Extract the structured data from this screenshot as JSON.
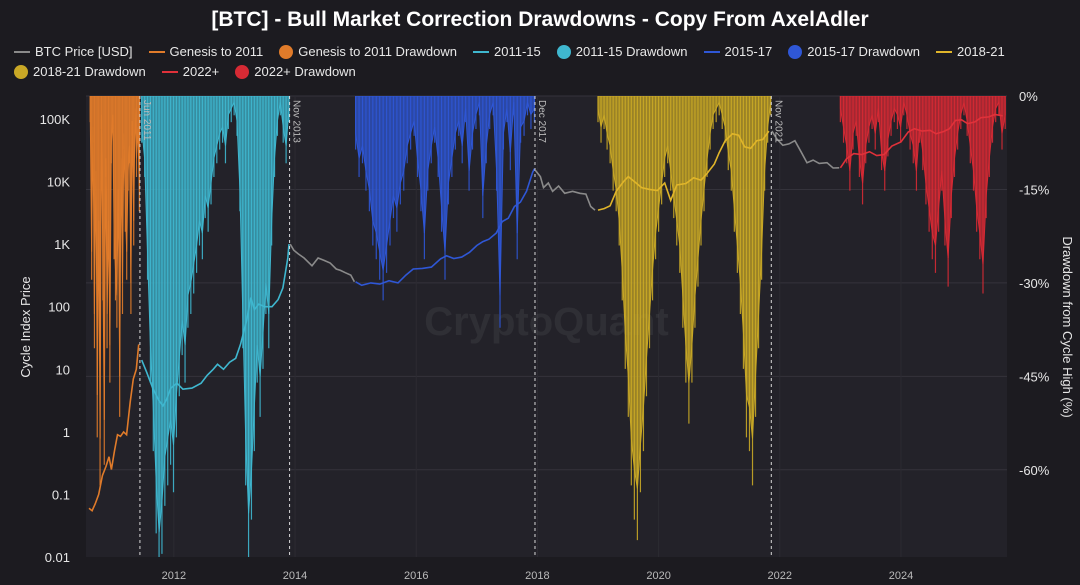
{
  "chart_data": {
    "type": "area",
    "title": "[BTC] - Bull Market Correction Drawdowns - Copy From AxelAdler",
    "ylabel_left": "Cycle Index Price",
    "ylabel_right": "Drawdown from Cycle High (%)",
    "y_left_scale": "log",
    "y_left_ticks": [
      "100K",
      "10K",
      "1K",
      "100",
      "10",
      "1",
      "0.1",
      "0.01"
    ],
    "y_left_tick_values": [
      100000,
      10000,
      1000,
      100,
      10,
      1,
      0.1,
      0.01
    ],
    "y_right_ticks": [
      "0%",
      "-15%",
      "-30%",
      "-45%",
      "-60%"
    ],
    "y_right_tick_values": [
      0,
      -15,
      -30,
      -45,
      -60
    ],
    "y_right_range": [
      -74,
      0
    ],
    "x_range": [
      2010.55,
      2025.75
    ],
    "x_ticks": [
      "2012",
      "2014",
      "2016",
      "2018",
      "2020",
      "2022",
      "2024"
    ],
    "x_tick_values": [
      2012,
      2014,
      2016,
      2018,
      2020,
      2022,
      2024
    ],
    "watermark": "CryptoQuant",
    "cycle_markers": [
      {
        "label": "Jun 2011",
        "x": 2011.44
      },
      {
        "label": "Nov 2013",
        "x": 2013.91
      },
      {
        "label": "Dec 2017",
        "x": 2017.96
      },
      {
        "label": "Nov 2021",
        "x": 2021.86
      }
    ],
    "legend": [
      {
        "label": "BTC Price [USD]",
        "kind": "line",
        "color": "#8a8a8a"
      },
      {
        "label": "Genesis to 2011",
        "kind": "line",
        "color": "#e07b2a"
      },
      {
        "label": "Genesis to 2011 Drawdown",
        "kind": "dot",
        "color": "#e07b2a"
      },
      {
        "label": "2011-15",
        "kind": "line",
        "color": "#3fb7cf"
      },
      {
        "label": "2011-15 Drawdown",
        "kind": "dot",
        "color": "#3fb7cf"
      },
      {
        "label": "2015-17",
        "kind": "line",
        "color": "#2f57d6"
      },
      {
        "label": "2015-17 Drawdown",
        "kind": "dot",
        "color": "#2f57d6"
      },
      {
        "label": "2018-21",
        "kind": "line",
        "color": "#e0b52a"
      },
      {
        "label": "2018-21 Drawdown",
        "kind": "dot",
        "color": "#c9a826"
      },
      {
        "label": "2022+",
        "kind": "line",
        "color": "#e0313a"
      },
      {
        "label": "2022+ Drawdown",
        "kind": "dot",
        "color": "#d62a34"
      }
    ],
    "series": [
      {
        "name": "Genesis to 2011",
        "color": "#e07b2a",
        "points": [
          [
            2010.6,
            0.06
          ],
          [
            2010.65,
            0.055
          ],
          [
            2010.7,
            0.07
          ],
          [
            2010.76,
            0.1
          ],
          [
            2010.82,
            0.2
          ],
          [
            2010.88,
            0.28
          ],
          [
            2010.93,
            0.4
          ],
          [
            2010.97,
            0.25
          ],
          [
            2011.02,
            0.5
          ],
          [
            2011.07,
            0.9
          ],
          [
            2011.12,
            0.85
          ],
          [
            2011.17,
            1.0
          ],
          [
            2011.22,
            0.9
          ],
          [
            2011.28,
            3
          ],
          [
            2011.33,
            7
          ],
          [
            2011.38,
            10
          ],
          [
            2011.42,
            25
          ]
        ]
      },
      {
        "name": "2011-15",
        "color": "#3fb7cf",
        "points": [
          [
            2011.47,
            14
          ],
          [
            2011.55,
            9
          ],
          [
            2011.65,
            5
          ],
          [
            2011.75,
            3.2
          ],
          [
            2011.82,
            2.6
          ],
          [
            2011.88,
            3.3
          ],
          [
            2011.95,
            5
          ],
          [
            2012.05,
            6
          ],
          [
            2012.15,
            4.8
          ],
          [
            2012.3,
            5
          ],
          [
            2012.45,
            6
          ],
          [
            2012.55,
            8
          ],
          [
            2012.65,
            10
          ],
          [
            2012.72,
            12
          ],
          [
            2012.82,
            10
          ],
          [
            2012.92,
            13
          ],
          [
            2013.02,
            15
          ],
          [
            2013.1,
            25
          ],
          [
            2013.2,
            60
          ],
          [
            2013.27,
            140
          ],
          [
            2013.33,
            90
          ],
          [
            2013.4,
            110
          ],
          [
            2013.5,
            100
          ],
          [
            2013.62,
            100
          ],
          [
            2013.72,
            130
          ],
          [
            2013.8,
            200
          ],
          [
            2013.88,
            600
          ],
          [
            2013.9,
            1000
          ]
        ]
      },
      {
        "name": "BTC Price [USD]",
        "color": "#8a8a8a",
        "points": [
          [
            2013.92,
            1000
          ],
          [
            2013.98,
            800
          ],
          [
            2014.05,
            700
          ],
          [
            2014.15,
            600
          ],
          [
            2014.28,
            450
          ],
          [
            2014.38,
            600
          ],
          [
            2014.48,
            550
          ],
          [
            2014.58,
            500
          ],
          [
            2014.68,
            400
          ],
          [
            2014.75,
            380
          ],
          [
            2014.83,
            350
          ],
          [
            2014.92,
            320
          ],
          [
            2014.98,
            250
          ]
        ]
      },
      {
        "name": "2015-17",
        "color": "#2f57d6",
        "points": [
          [
            2015.0,
            250
          ],
          [
            2015.1,
            220
          ],
          [
            2015.25,
            240
          ],
          [
            2015.4,
            230
          ],
          [
            2015.55,
            260
          ],
          [
            2015.7,
            240
          ],
          [
            2015.83,
            320
          ],
          [
            2015.95,
            400
          ],
          [
            2016.1,
            410
          ],
          [
            2016.25,
            430
          ],
          [
            2016.4,
            580
          ],
          [
            2016.5,
            650
          ],
          [
            2016.62,
            590
          ],
          [
            2016.75,
            620
          ],
          [
            2016.88,
            740
          ],
          [
            2017.0,
            950
          ],
          [
            2017.1,
            1100
          ],
          [
            2017.2,
            1200
          ],
          [
            2017.32,
            1500
          ],
          [
            2017.42,
            2300
          ],
          [
            2017.52,
            2600
          ],
          [
            2017.62,
            4000
          ],
          [
            2017.72,
            4700
          ],
          [
            2017.82,
            7000
          ],
          [
            2017.92,
            14000
          ],
          [
            2017.95,
            16000
          ]
        ]
      },
      {
        "name": "BTC Price [USD]",
        "color": "#8a8a8a",
        "points": [
          [
            2017.97,
            15000
          ],
          [
            2018.05,
            12000
          ],
          [
            2018.1,
            8000
          ],
          [
            2018.18,
            9500
          ],
          [
            2018.25,
            7000
          ],
          [
            2018.35,
            8500
          ],
          [
            2018.45,
            6500
          ],
          [
            2018.58,
            7000
          ],
          [
            2018.7,
            6500
          ],
          [
            2018.8,
            6300
          ],
          [
            2018.88,
            4000
          ],
          [
            2018.95,
            3500
          ]
        ]
      },
      {
        "name": "2018-21",
        "color": "#e0b52a",
        "points": [
          [
            2019.0,
            3500
          ],
          [
            2019.1,
            3700
          ],
          [
            2019.2,
            4100
          ],
          [
            2019.3,
            7000
          ],
          [
            2019.42,
            10000
          ],
          [
            2019.5,
            12000
          ],
          [
            2019.6,
            10000
          ],
          [
            2019.72,
            8000
          ],
          [
            2019.85,
            7500
          ],
          [
            2019.98,
            7200
          ],
          [
            2020.1,
            9500
          ],
          [
            2020.2,
            5000
          ],
          [
            2020.3,
            8800
          ],
          [
            2020.45,
            9300
          ],
          [
            2020.58,
            11500
          ],
          [
            2020.7,
            10500
          ],
          [
            2020.8,
            13500
          ],
          [
            2020.92,
            19000
          ],
          [
            2021.0,
            29000
          ],
          [
            2021.1,
            45000
          ],
          [
            2021.22,
            58000
          ],
          [
            2021.32,
            55000
          ],
          [
            2021.42,
            36000
          ],
          [
            2021.52,
            34000
          ],
          [
            2021.62,
            45000
          ],
          [
            2021.72,
            47000
          ],
          [
            2021.82,
            64000
          ]
        ]
      },
      {
        "name": "BTC Price [USD]",
        "color": "#8a8a8a",
        "points": [
          [
            2021.87,
            64000
          ],
          [
            2021.95,
            48000
          ],
          [
            2022.05,
            38000
          ],
          [
            2022.15,
            40000
          ],
          [
            2022.25,
            45000
          ],
          [
            2022.35,
            30000
          ],
          [
            2022.45,
            20000
          ],
          [
            2022.55,
            22000
          ],
          [
            2022.65,
            19500
          ],
          [
            2022.78,
            20000
          ],
          [
            2022.88,
            16500
          ],
          [
            2022.98,
            16600
          ]
        ]
      },
      {
        "name": "2022+",
        "color": "#e0313a",
        "points": [
          [
            2023.0,
            16600
          ],
          [
            2023.1,
            23000
          ],
          [
            2023.22,
            28000
          ],
          [
            2023.35,
            27000
          ],
          [
            2023.48,
            30000
          ],
          [
            2023.6,
            26000
          ],
          [
            2023.72,
            27000
          ],
          [
            2023.85,
            37000
          ],
          [
            2024.0,
            43000
          ],
          [
            2024.12,
            62000
          ],
          [
            2024.22,
            70000
          ],
          [
            2024.35,
            64000
          ],
          [
            2024.48,
            66000
          ],
          [
            2024.58,
            58000
          ],
          [
            2024.7,
            63000
          ],
          [
            2024.8,
            70000
          ],
          [
            2024.9,
            95000
          ],
          [
            2025.0,
            97000
          ],
          [
            2025.1,
            84000
          ],
          [
            2025.22,
            90000
          ],
          [
            2025.32,
            105000
          ],
          [
            2025.45,
            108000
          ],
          [
            2025.55,
            118000
          ],
          [
            2025.62,
            115000
          ],
          [
            2025.68,
            112000
          ]
        ]
      }
    ],
    "drawdowns": [
      {
        "name": "Genesis to 2011 Drawdown",
        "color": "#e07b2a",
        "x_start": 2010.62,
        "x_end": 2011.43,
        "values": [
          -2,
          -25,
          -5,
          -35,
          -12,
          -48,
          -20,
          -55,
          -3,
          -28,
          -52,
          -10,
          -35,
          -20,
          -40,
          -8,
          -3,
          -22,
          -28,
          -32,
          -15,
          -45,
          -10,
          -30,
          -6,
          -18,
          -25,
          -12,
          -8,
          -30,
          -4,
          -20,
          -2,
          -10,
          -5,
          -15
        ]
      },
      {
        "name": "2011-15 Drawdown",
        "color": "#3fb7cf",
        "x_start": 2011.47,
        "x_end": 2013.9,
        "values": [
          -5,
          -10,
          -25,
          -40,
          -50,
          -62,
          -70,
          -65,
          -58,
          -55,
          -52,
          -56,
          -48,
          -42,
          -36,
          -40,
          -32,
          -30,
          -27,
          -24,
          -20,
          -22,
          -16,
          -18,
          -14,
          -10,
          -8,
          -6,
          -5,
          -8,
          -3,
          -2,
          -1,
          -4,
          -15,
          -35,
          -55,
          -67,
          -60,
          -50,
          -40,
          -45,
          -38,
          -30,
          -35,
          -20,
          -10,
          -4,
          -1,
          -5,
          -8,
          -2
        ]
      },
      {
        "name": "2015-17 Drawdown",
        "color": "#2f57d6",
        "x_start": 2015.0,
        "x_end": 2017.95,
        "values": [
          -6,
          -10,
          -8,
          -12,
          -15,
          -20,
          -22,
          -25,
          -28,
          -24,
          -20,
          -16,
          -18,
          -14,
          -12,
          -8,
          -6,
          -4,
          -10,
          -15,
          -22,
          -12,
          -8,
          -5,
          -10,
          -18,
          -25,
          -14,
          -10,
          -6,
          -4,
          -8,
          -2,
          -12,
          -6,
          -3,
          -1,
          -16,
          -8,
          -3,
          -1,
          -12,
          -32,
          -6,
          -2,
          -9,
          -1,
          -22,
          -5,
          -4,
          -1,
          -3,
          -2
        ]
      },
      {
        "name": "2018-21 Drawdown",
        "color": "#c9a826",
        "x_start": 2019.0,
        "x_end": 2021.85,
        "values": [
          -2,
          -5,
          -3,
          -6,
          -8,
          -12,
          -15,
          -20,
          -28,
          -38,
          -45,
          -55,
          -60,
          -63,
          -56,
          -50,
          -42,
          -35,
          -28,
          -22,
          -18,
          -14,
          -10,
          -8,
          -12,
          -16,
          -20,
          -24,
          -32,
          -40,
          -46,
          -40,
          -32,
          -26,
          -20,
          -15,
          -10,
          -6,
          -3,
          -2,
          -1,
          -3,
          -5,
          -9,
          -12,
          -18,
          -24,
          -30,
          -38,
          -48,
          -50,
          -55,
          -45,
          -35,
          -25,
          -12,
          -5,
          -1
        ]
      },
      {
        "name": "2022+ Drawdown",
        "color": "#d62a34",
        "x_start": 2023.0,
        "x_end": 2025.72,
        "values": [
          -2,
          -5,
          -8,
          -12,
          -6,
          -4,
          -10,
          -14,
          -8,
          -5,
          -3,
          -6,
          -2,
          -9,
          -12,
          -7,
          -4,
          -2,
          -3,
          -5,
          -1,
          -3,
          -6,
          -8,
          -12,
          -5,
          -9,
          -14,
          -18,
          -22,
          -24,
          -18,
          -12,
          -20,
          -26,
          -16,
          -10,
          -6,
          -3,
          -1,
          -4,
          -8,
          -12,
          -18,
          -22,
          -27,
          -16,
          -10,
          -5,
          -2,
          -1,
          -6,
          -3
        ]
      }
    ]
  }
}
